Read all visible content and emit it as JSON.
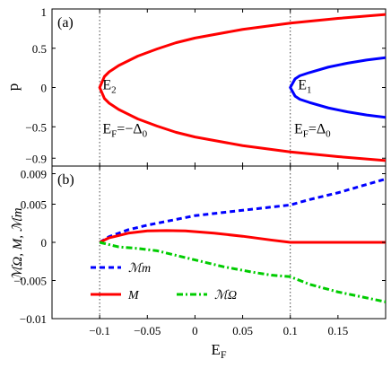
{
  "chart_data": [
    {
      "type": "line",
      "panel_label": "(a)",
      "ylabel": "p",
      "xlim": [
        -0.15,
        0.2
      ],
      "ylim": [
        -1,
        1
      ],
      "x_ticks": [
        -0.1,
        -0.05,
        0,
        0.05,
        0.1,
        0.15
      ],
      "y_ticks": [
        -0.9,
        -0.5,
        0,
        0.5,
        1
      ],
      "y_tick_labels": [
        "−0.9",
        "−0.5",
        "0",
        "0.5",
        "1"
      ],
      "series": [
        {
          "name": "E2",
          "color": "#ff0000",
          "points": [
            [
              -0.1,
              0
            ],
            [
              -0.095,
              0.14
            ],
            [
              -0.09,
              0.2
            ],
            [
              -0.08,
              0.28
            ],
            [
              -0.06,
              0.4
            ],
            [
              -0.04,
              0.49
            ],
            [
              -0.02,
              0.57
            ],
            [
              0,
              0.63
            ],
            [
              0.05,
              0.74
            ],
            [
              0.1,
              0.82
            ],
            [
              0.15,
              0.88
            ],
            [
              0.2,
              0.93
            ]
          ]
        },
        {
          "name": "E1",
          "color": "#0000ff",
          "points": [
            [
              0.1,
              0
            ],
            [
              0.105,
              0.11
            ],
            [
              0.11,
              0.15
            ],
            [
              0.12,
              0.19
            ],
            [
              0.14,
              0.26
            ],
            [
              0.16,
              0.31
            ],
            [
              0.18,
              0.35
            ],
            [
              0.2,
              0.38
            ]
          ]
        }
      ],
      "mirror_y": true,
      "vlines": [
        -0.1,
        0.1
      ],
      "annotations": [
        {
          "text": "E",
          "sub": "2",
          "x": -0.097,
          "y": -0.02
        },
        {
          "text": "E",
          "sub": "1",
          "x": 0.108,
          "y": -0.02
        },
        {
          "text": "E",
          "sub": "F",
          "rel": "=−Δ",
          "rel_sub": "0",
          "x": -0.097,
          "y": -0.58
        },
        {
          "text": "E",
          "sub": "F",
          "rel": "=Δ",
          "rel_sub": "0",
          "x": 0.104,
          "y": -0.58
        }
      ]
    },
    {
      "type": "line",
      "panel_label": "(b)",
      "ylabel": "ℳΩ, M, ℳm",
      "xlabel": "E",
      "xlabel_sub": "F",
      "xlim": [
        -0.15,
        0.2
      ],
      "ylim": [
        -0.01,
        0.01
      ],
      "x_ticks": [
        -0.1,
        -0.05,
        0,
        0.05,
        0.1,
        0.15
      ],
      "x_tick_labels": [
        "−0.1",
        "−0.05",
        "0",
        "0.05",
        "0.1",
        "0.15"
      ],
      "y_ticks": [
        -0.01,
        -0.005,
        0,
        0.005,
        0.009
      ],
      "y_tick_labels": [
        "−0.01",
        "−0.005",
        "0",
        "0.005",
        "0.009"
      ],
      "series": [
        {
          "name": "ℳm",
          "color": "#0000ff",
          "style": "dashed",
          "points": [
            [
              -0.1,
              0
            ],
            [
              -0.09,
              0.00075
            ],
            [
              -0.07,
              0.00165
            ],
            [
              -0.05,
              0.00225
            ],
            [
              -0.02,
              0.003
            ],
            [
              0,
              0.0035
            ],
            [
              0.05,
              0.0042
            ],
            [
              0.1,
              0.0049
            ],
            [
              0.12,
              0.0056
            ],
            [
              0.15,
              0.0065
            ],
            [
              0.2,
              0.0083
            ]
          ]
        },
        {
          "name": "M",
          "color": "#ff0000",
          "style": "solid",
          "points": [
            [
              -0.1,
              0
            ],
            [
              -0.09,
              0.0006
            ],
            [
              -0.07,
              0.0012
            ],
            [
              -0.05,
              0.0015
            ],
            [
              -0.03,
              0.00155
            ],
            [
              -0.01,
              0.0015
            ],
            [
              0.02,
              0.0012
            ],
            [
              0.05,
              0.0008
            ],
            [
              0.08,
              0.0003
            ],
            [
              0.1,
              0
            ],
            [
              0.2,
              0
            ]
          ]
        },
        {
          "name": "ℳΩ",
          "color": "#00cc00",
          "style": "dashdot",
          "points": [
            [
              -0.1,
              0
            ],
            [
              -0.08,
              -0.0006
            ],
            [
              -0.06,
              -0.0008
            ],
            [
              -0.04,
              -0.0011
            ],
            [
              -0.02,
              -0.0017
            ],
            [
              0,
              -0.0023
            ],
            [
              0.03,
              -0.0032
            ],
            [
              0.06,
              -0.0039
            ],
            [
              0.08,
              -0.0043
            ],
            [
              0.1,
              -0.0045
            ],
            [
              0.12,
              -0.0055
            ],
            [
              0.15,
              -0.0065
            ],
            [
              0.2,
              -0.0078
            ]
          ]
        }
      ],
      "vlines": [
        -0.1,
        0.1
      ],
      "legend": [
        {
          "label": "ℳm",
          "color": "#0000ff",
          "style": "dashed"
        },
        {
          "label": "M",
          "color": "#ff0000",
          "style": "solid"
        },
        {
          "label": "ℳΩ",
          "color": "#00cc00",
          "style": "dashdot"
        }
      ]
    }
  ]
}
